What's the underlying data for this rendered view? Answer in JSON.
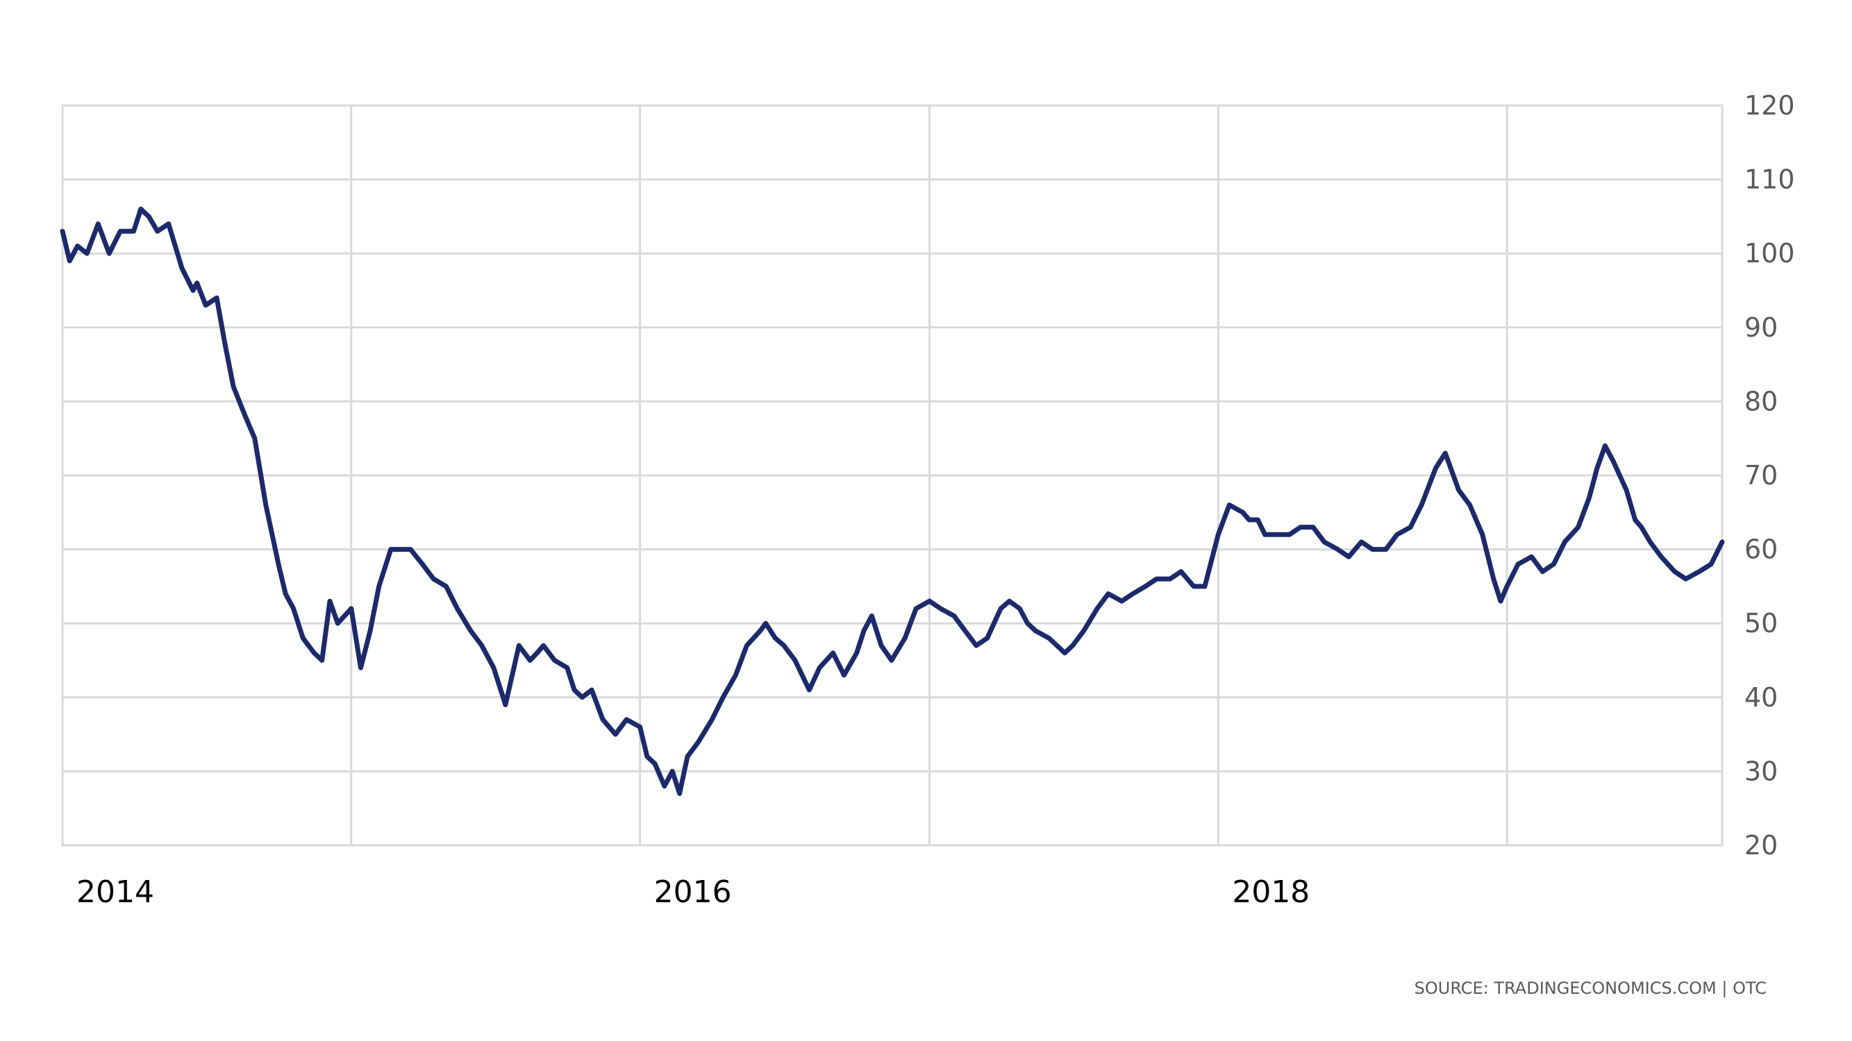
{
  "colors": {
    "series": "#1c2a6b",
    "grid": "#d9d9d9",
    "axis_text": "#595959"
  },
  "source_note": "SOURCE: TRADINGECONOMICS.COM | OTC",
  "chart_data": {
    "type": "line",
    "title": "",
    "xlabel": "",
    "ylabel": "",
    "y_axis_position": "right",
    "ylim": [
      20,
      120
    ],
    "yticks": [
      "120",
      "110",
      "100",
      "90",
      "80",
      "70",
      "60",
      "50",
      "40",
      "30",
      "20"
    ],
    "xlim": [
      "2014-01-01",
      "2019-09-30"
    ],
    "xticks": [
      {
        "date": "2014-01-01",
        "label": "2014"
      },
      {
        "date": "2016-01-01",
        "label": "2016"
      },
      {
        "date": "2018-01-01",
        "label": "2018"
      }
    ],
    "x_gridlines": [
      "2015-01-01",
      "2016-01-01",
      "2017-01-01",
      "2018-01-01",
      "2019-01-01"
    ],
    "grid": true,
    "legend": "none",
    "series": [
      {
        "x": [
          "2014-01-01",
          "2014-01-10",
          "2014-01-20",
          "2014-02-01",
          "2014-02-15",
          "2014-03-01",
          "2014-03-15",
          "2014-04-01",
          "2014-04-10",
          "2014-04-20",
          "2014-05-01",
          "2014-05-15",
          "2014-06-01",
          "2014-06-15",
          "2014-06-20",
          "2014-07-01",
          "2014-07-15",
          "2014-07-25",
          "2014-08-05",
          "2014-08-20",
          "2014-09-01",
          "2014-09-15",
          "2014-10-01",
          "2014-10-10",
          "2014-10-20",
          "2014-11-01",
          "2014-11-15",
          "2014-11-25",
          "2014-12-05",
          "2014-12-15",
          "2015-01-01",
          "2015-01-13",
          "2015-01-25",
          "2015-02-05",
          "2015-02-20",
          "2015-03-05",
          "2015-03-17",
          "2015-04-01",
          "2015-04-15",
          "2015-05-01",
          "2015-05-15",
          "2015-06-01",
          "2015-06-15",
          "2015-06-30",
          "2015-07-15",
          "2015-08-01",
          "2015-08-15",
          "2015-08-24",
          "2015-09-01",
          "2015-09-15",
          "2015-10-01",
          "2015-10-10",
          "2015-10-20",
          "2015-11-01",
          "2015-11-15",
          "2015-12-01",
          "2015-12-15",
          "2016-01-01",
          "2016-01-10",
          "2016-01-20",
          "2016-02-01",
          "2016-02-11",
          "2016-02-20",
          "2016-03-01",
          "2016-03-15",
          "2016-04-01",
          "2016-04-15",
          "2016-05-01",
          "2016-05-15",
          "2016-06-01",
          "2016-06-08",
          "2016-06-20",
          "2016-07-01",
          "2016-07-15",
          "2016-08-02",
          "2016-08-15",
          "2016-09-01",
          "2016-09-15",
          "2016-10-01",
          "2016-10-10",
          "2016-10-20",
          "2016-11-01",
          "2016-11-14",
          "2016-12-01",
          "2016-12-15",
          "2017-01-01",
          "2017-01-15",
          "2017-02-01",
          "2017-02-15",
          "2017-03-01",
          "2017-03-15",
          "2017-04-01",
          "2017-04-12",
          "2017-04-25",
          "2017-05-05",
          "2017-05-15",
          "2017-06-01",
          "2017-06-21",
          "2017-07-01",
          "2017-07-15",
          "2017-08-01",
          "2017-08-15",
          "2017-09-01",
          "2017-09-15",
          "2017-10-01",
          "2017-10-15",
          "2017-11-01",
          "2017-11-15",
          "2017-12-01",
          "2017-12-15",
          "2018-01-01",
          "2018-01-15",
          "2018-02-01",
          "2018-02-09",
          "2018-02-20",
          "2018-03-01",
          "2018-03-15",
          "2018-04-01",
          "2018-04-15",
          "2018-05-01",
          "2018-05-15",
          "2018-06-01",
          "2018-06-15",
          "2018-07-01",
          "2018-07-15",
          "2018-08-01",
          "2018-08-15",
          "2018-09-01",
          "2018-09-15",
          "2018-10-03",
          "2018-10-15",
          "2018-11-01",
          "2018-11-15",
          "2018-12-01",
          "2018-12-15",
          "2018-12-24",
          "2019-01-01",
          "2019-01-15",
          "2019-02-01",
          "2019-02-15",
          "2019-03-01",
          "2019-03-15",
          "2019-04-01",
          "2019-04-15",
          "2019-04-25",
          "2019-05-05",
          "2019-05-15",
          "2019-06-01",
          "2019-06-12",
          "2019-06-20",
          "2019-07-01",
          "2019-07-15",
          "2019-08-01",
          "2019-08-15",
          "2019-09-01",
          "2019-09-16",
          "2019-09-30"
        ],
        "y": [
          103,
          99,
          101,
          100,
          104,
          100,
          103,
          103,
          106,
          105,
          103,
          104,
          98,
          95,
          96,
          93,
          94,
          88,
          82,
          78,
          75,
          66,
          58,
          54,
          52,
          48,
          46,
          45,
          53,
          50,
          52,
          44,
          49,
          55,
          60,
          60,
          60,
          58,
          56,
          55,
          52,
          49,
          47,
          44,
          39,
          47,
          45,
          46,
          47,
          45,
          44,
          41,
          40,
          41,
          37,
          35,
          37,
          36,
          32,
          31,
          28,
          30,
          27,
          32,
          34,
          37,
          40,
          43,
          47,
          49,
          50,
          48,
          47,
          45,
          41,
          44,
          46,
          43,
          46,
          49,
          51,
          47,
          45,
          48,
          52,
          53,
          52,
          51,
          49,
          47,
          48,
          52,
          53,
          52,
          50,
          49,
          48,
          46,
          47,
          49,
          52,
          54,
          53,
          54,
          55,
          56,
          56,
          57,
          55,
          55,
          62,
          66,
          65,
          64,
          64,
          62,
          62,
          62,
          63,
          63,
          61,
          60,
          59,
          61,
          60,
          60,
          62,
          63,
          66,
          71,
          73,
          68,
          66,
          62,
          56,
          53,
          55,
          58,
          59,
          57,
          58,
          61,
          63,
          67,
          71,
          74,
          72,
          68,
          64,
          63,
          61,
          59,
          57,
          56,
          57,
          58,
          61
        ]
      }
    ]
  }
}
